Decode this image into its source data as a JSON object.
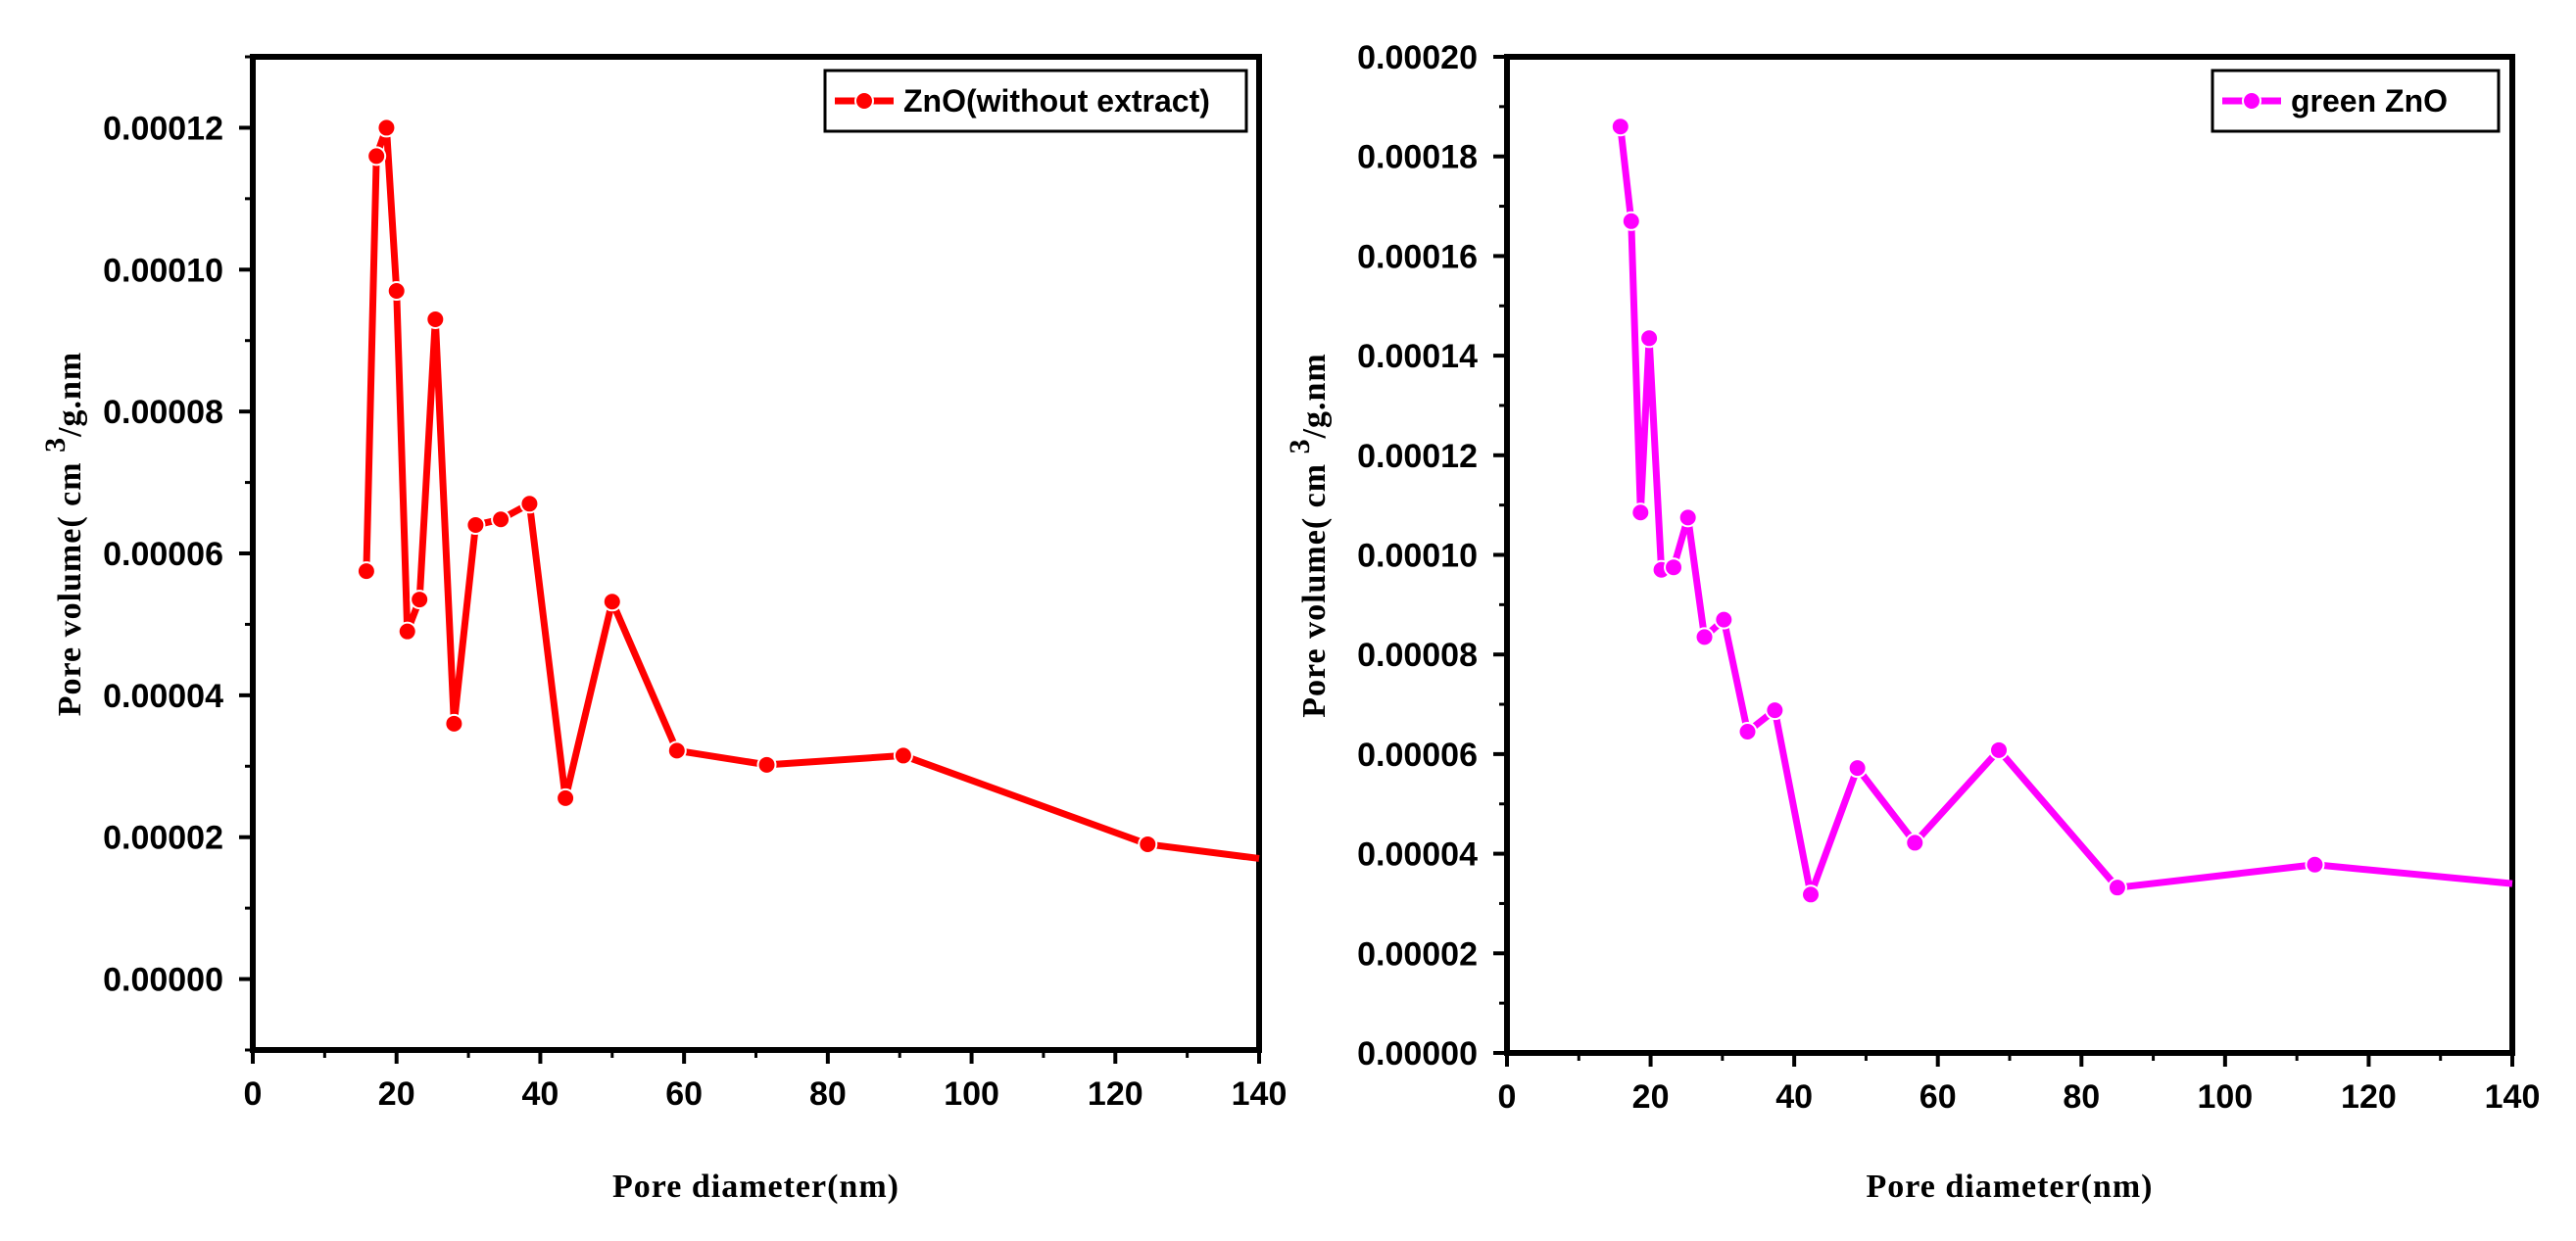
{
  "chart_data": [
    {
      "type": "line",
      "color": "#ff0000",
      "marker": "circle",
      "xlabel": "Pore diameter(nm)",
      "ylabel_main": "Pore volume( cm",
      "ylabel_sup": "3",
      "ylabel_tail": "/g.nm",
      "xlim": [
        0,
        140
      ],
      "ylim": [
        -1e-05,
        0.00013
      ],
      "xticks": [
        0,
        20,
        40,
        60,
        80,
        100,
        120,
        140
      ],
      "xtick_labels": [
        "0",
        "20",
        "40",
        "60",
        "80",
        "100",
        "120",
        "140"
      ],
      "yticks": [
        0,
        2e-05,
        4e-05,
        6e-05,
        8e-05,
        0.0001,
        0.00012
      ],
      "ytick_labels": [
        "0.00000",
        "0.00002",
        "0.00004",
        "0.00006",
        "0.00008",
        "0.00010",
        "0.00012"
      ],
      "legend_position": "top-right",
      "grid": false,
      "series": [
        {
          "name": "ZnO(without extract)",
          "x": [
            15.8,
            17.2,
            18.6,
            20.0,
            21.5,
            23.2,
            25.4,
            28.0,
            31.0,
            34.5,
            38.5,
            43.5,
            50.0,
            59.0,
            71.5,
            90.5,
            124.5,
            140.0
          ],
          "y": [
            5.75e-05,
            0.000116,
            0.00012,
            9.7e-05,
            4.9e-05,
            5.35e-05,
            9.3e-05,
            3.6e-05,
            6.4e-05,
            6.48e-05,
            6.7e-05,
            2.55e-05,
            5.32e-05,
            3.22e-05,
            3.02e-05,
            3.15e-05,
            1.9e-05,
            1.7e-05
          ],
          "markers": [
            true,
            true,
            true,
            true,
            true,
            true,
            true,
            true,
            true,
            true,
            true,
            true,
            true,
            true,
            true,
            true,
            true,
            false
          ]
        }
      ]
    },
    {
      "type": "line",
      "color": "#ff00ff",
      "marker": "circle",
      "xlabel": "Pore diameter(nm)",
      "ylabel_main": "Pore volume( cm",
      "ylabel_sup": "3",
      "ylabel_tail": "/g.nm",
      "xlim": [
        0,
        140
      ],
      "ylim": [
        0,
        0.0002
      ],
      "xticks": [
        0,
        20,
        40,
        60,
        80,
        100,
        120,
        140
      ],
      "xtick_labels": [
        "0",
        "20",
        "40",
        "60",
        "80",
        "100",
        "120",
        "140"
      ],
      "yticks": [
        0,
        2e-05,
        4e-05,
        6e-05,
        8e-05,
        0.0001,
        0.00012,
        0.00014,
        0.00016,
        0.00018,
        0.0002
      ],
      "ytick_labels": [
        "0.00000",
        "0.00002",
        "0.00004",
        "0.00006",
        "0.00008",
        "0.00010",
        "0.00012",
        "0.00014",
        "0.00016",
        "0.00018",
        "0.00020"
      ],
      "legend_position": "top-right",
      "grid": false,
      "series": [
        {
          "name": "green ZnO",
          "x": [
            15.8,
            17.3,
            18.6,
            19.8,
            21.5,
            23.2,
            25.2,
            27.5,
            30.2,
            33.5,
            37.3,
            42.3,
            48.8,
            56.8,
            68.5,
            85.0,
            112.5,
            140.0
          ],
          "y": [
            0.000186,
            0.000167,
            0.0001085,
            0.0001435,
            9.7e-05,
            9.75e-05,
            0.0001075,
            8.35e-05,
            8.7e-05,
            6.45e-05,
            6.88e-05,
            3.18e-05,
            5.72e-05,
            4.22e-05,
            6.08e-05,
            3.32e-05,
            3.78e-05,
            3.4e-05
          ],
          "markers": [
            true,
            true,
            true,
            true,
            true,
            true,
            true,
            true,
            true,
            true,
            true,
            true,
            true,
            true,
            true,
            true,
            true,
            false
          ]
        }
      ]
    }
  ]
}
